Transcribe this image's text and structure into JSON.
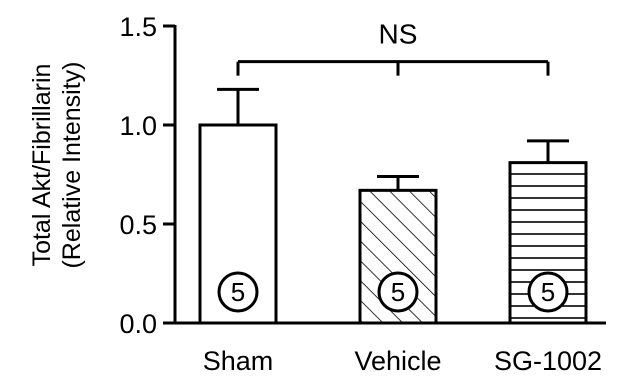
{
  "chart_data": {
    "type": "bar",
    "ylabel_lines": [
      "Total Akt/Fibrillarin",
      "(Relative Intensity)"
    ],
    "categories": [
      "Sham",
      "Vehicle",
      "SG-1002"
    ],
    "values": [
      1.0,
      0.67,
      0.81
    ],
    "errors": [
      0.18,
      0.07,
      0.11
    ],
    "n_labels": [
      "5",
      "5",
      "5"
    ],
    "fills": [
      "none",
      "diagonal-hatch",
      "horizontal-hatch"
    ],
    "ylim": [
      0,
      1.5
    ],
    "yticks": [
      0.0,
      0.5,
      1.0,
      1.5
    ],
    "ytick_labels": [
      "0.0",
      "0.5",
      "1.0",
      "1.5"
    ],
    "significance": {
      "label": "NS",
      "y": 1.32
    },
    "grid": false,
    "legend": "none"
  }
}
